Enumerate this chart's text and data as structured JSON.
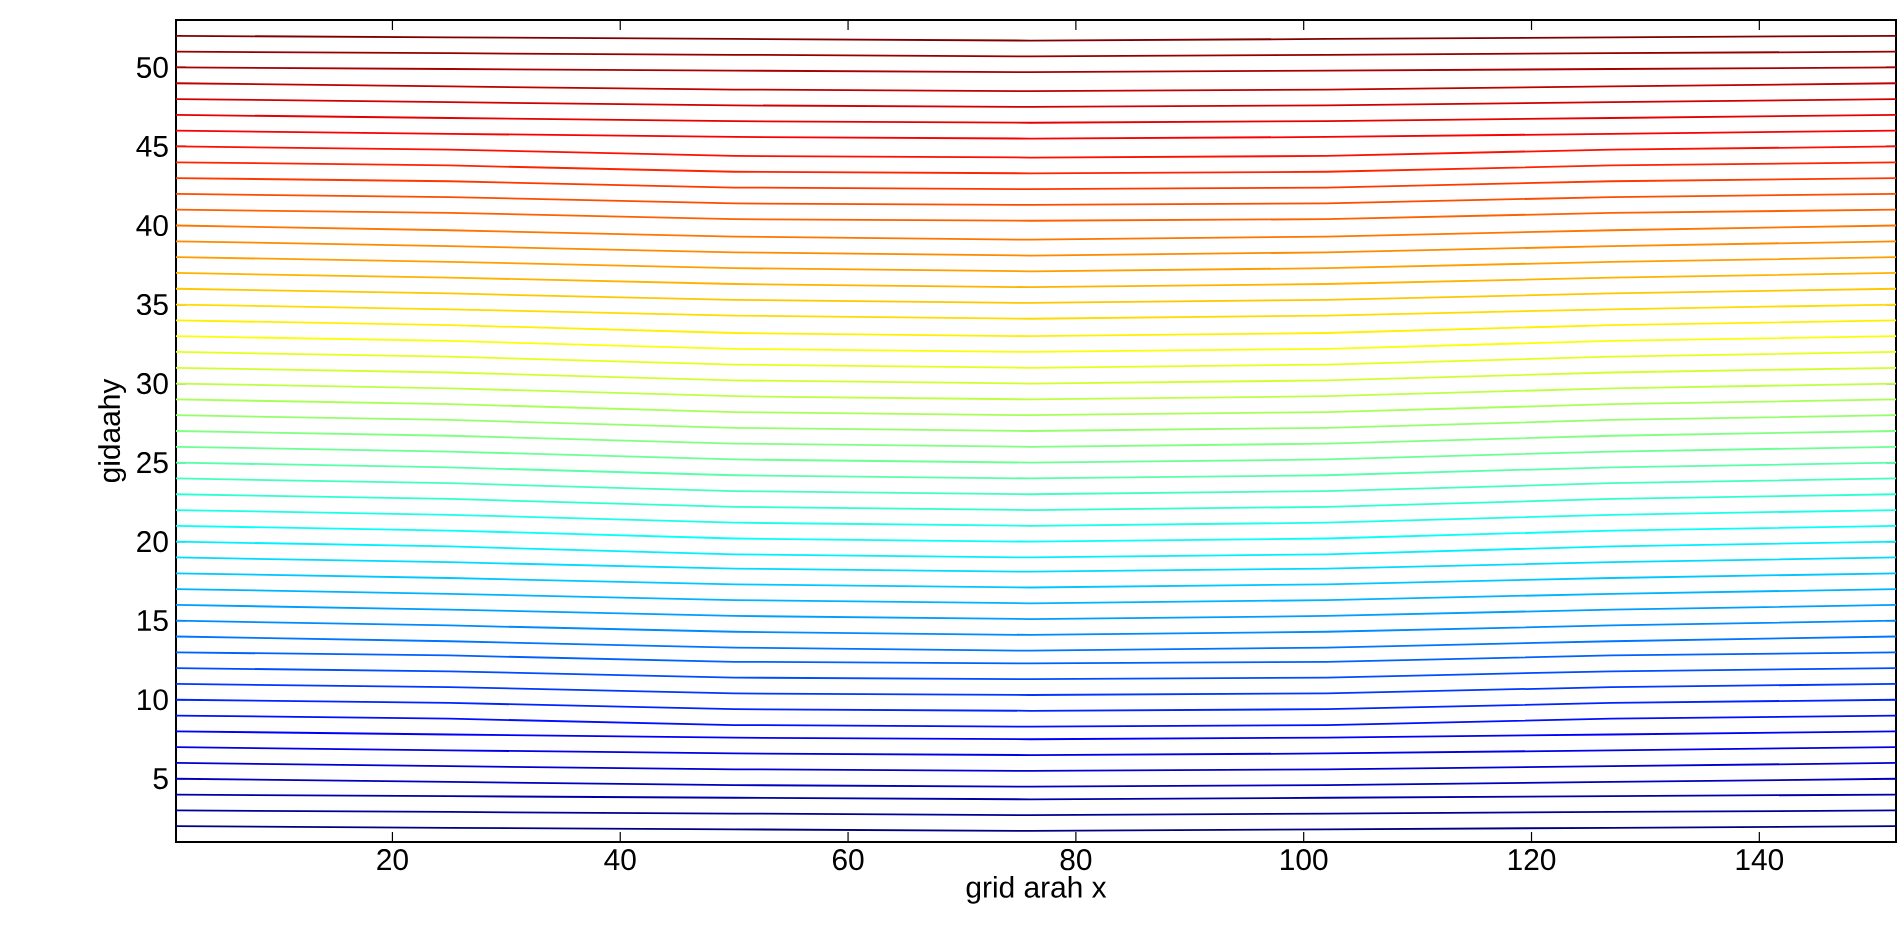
{
  "chart_data": {
    "type": "line",
    "xlabel": "grid arah x",
    "ylabel": "gidaahy",
    "xlim": [
      1,
      152
    ],
    "ylim": [
      1,
      53
    ],
    "xticks": [
      20,
      40,
      60,
      80,
      100,
      120,
      140
    ],
    "yticks": [
      5,
      10,
      15,
      20,
      25,
      30,
      35,
      40,
      45,
      50
    ],
    "x": [
      1,
      25,
      50,
      76,
      102,
      127,
      152
    ],
    "series": [
      {
        "color": "#000080",
        "values": [
          2,
          1.9,
          1.8,
          1.7,
          1.8,
          1.9,
          2
        ]
      },
      {
        "color": "#000094",
        "values": [
          3,
          2.9,
          2.8,
          2.7,
          2.8,
          2.9,
          3
        ]
      },
      {
        "color": "#0000a8",
        "values": [
          4,
          3.9,
          3.8,
          3.7,
          3.8,
          3.9,
          4
        ]
      },
      {
        "color": "#0000bd",
        "values": [
          5,
          4.8,
          4.6,
          4.5,
          4.6,
          4.8,
          5
        ]
      },
      {
        "color": "#0000d1",
        "values": [
          6,
          5.8,
          5.6,
          5.5,
          5.6,
          5.8,
          6
        ]
      },
      {
        "color": "#0000e6",
        "values": [
          7,
          6.8,
          6.6,
          6.5,
          6.6,
          6.8,
          7
        ]
      },
      {
        "color": "#0000fa",
        "values": [
          8,
          7.8,
          7.6,
          7.5,
          7.6,
          7.8,
          8
        ]
      },
      {
        "color": "#000fff",
        "values": [
          9,
          8.8,
          8.4,
          8.3,
          8.4,
          8.8,
          9
        ]
      },
      {
        "color": "#0024ff",
        "values": [
          10,
          9.8,
          9.4,
          9.3,
          9.4,
          9.8,
          10
        ]
      },
      {
        "color": "#0038ff",
        "values": [
          11,
          10.8,
          10.4,
          10.3,
          10.4,
          10.8,
          11
        ]
      },
      {
        "color": "#004cff",
        "values": [
          12,
          11.8,
          11.4,
          11.3,
          11.4,
          11.8,
          12
        ]
      },
      {
        "color": "#0061ff",
        "values": [
          13,
          12.8,
          12.4,
          12.3,
          12.4,
          12.8,
          13
        ]
      },
      {
        "color": "#0075ff",
        "values": [
          14,
          13.7,
          13.3,
          13.1,
          13.3,
          13.7,
          14
        ]
      },
      {
        "color": "#008aff",
        "values": [
          15,
          14.7,
          14.3,
          14.1,
          14.3,
          14.7,
          15
        ]
      },
      {
        "color": "#009eff",
        "values": [
          16,
          15.7,
          15.3,
          15.1,
          15.3,
          15.7,
          16
        ]
      },
      {
        "color": "#00b3ff",
        "values": [
          17,
          16.7,
          16.3,
          16.1,
          16.3,
          16.7,
          17
        ]
      },
      {
        "color": "#00c7ff",
        "values": [
          18,
          17.7,
          17.3,
          17.1,
          17.3,
          17.7,
          18
        ]
      },
      {
        "color": "#00dbff",
        "values": [
          19,
          18.7,
          18.3,
          18.1,
          18.3,
          18.7,
          19
        ]
      },
      {
        "color": "#00f0ff",
        "values": [
          20,
          19.7,
          19.2,
          19,
          19.2,
          19.7,
          20
        ]
      },
      {
        "color": "#05fffa",
        "values": [
          21,
          20.7,
          20.2,
          20,
          20.2,
          20.7,
          21
        ]
      },
      {
        "color": "#1affe6",
        "values": [
          22,
          21.7,
          21.2,
          21,
          21.2,
          21.7,
          22
        ]
      },
      {
        "color": "#2effd1",
        "values": [
          23,
          22.7,
          22.2,
          22,
          22.2,
          22.7,
          23
        ]
      },
      {
        "color": "#42ffbd",
        "values": [
          24,
          23.7,
          23.2,
          23,
          23.2,
          23.7,
          24
        ]
      },
      {
        "color": "#57ffa8",
        "values": [
          25,
          24.7,
          24.2,
          24,
          24.2,
          24.7,
          25
        ]
      },
      {
        "color": "#6bff94",
        "values": [
          26,
          25.7,
          25.2,
          25,
          25.2,
          25.7,
          26
        ]
      },
      {
        "color": "#80ff80",
        "values": [
          27,
          26.7,
          26.2,
          26,
          26.2,
          26.7,
          27
        ]
      },
      {
        "color": "#94ff6b",
        "values": [
          28,
          27.7,
          27.2,
          27,
          27.2,
          27.7,
          28
        ]
      },
      {
        "color": "#a8ff57",
        "values": [
          29,
          28.7,
          28.2,
          28,
          28.2,
          28.7,
          29
        ]
      },
      {
        "color": "#bdff42",
        "values": [
          30,
          29.7,
          29.2,
          29,
          29.2,
          29.7,
          30
        ]
      },
      {
        "color": "#d1ff2e",
        "values": [
          31,
          30.7,
          30.2,
          30,
          30.2,
          30.7,
          31
        ]
      },
      {
        "color": "#e6ff1a",
        "values": [
          32,
          31.7,
          31.2,
          31,
          31.2,
          31.7,
          32
        ]
      },
      {
        "color": "#faff05",
        "values": [
          33,
          32.7,
          32.2,
          32,
          32.2,
          32.7,
          33
        ]
      },
      {
        "color": "#fff000",
        "values": [
          34,
          33.7,
          33.2,
          33,
          33.2,
          33.7,
          34
        ]
      },
      {
        "color": "#ffdb00",
        "values": [
          35,
          34.7,
          34.3,
          34.1,
          34.3,
          34.7,
          35
        ]
      },
      {
        "color": "#ffc700",
        "values": [
          36,
          35.7,
          35.3,
          35.1,
          35.3,
          35.7,
          36
        ]
      },
      {
        "color": "#ffb300",
        "values": [
          37,
          36.7,
          36.3,
          36.1,
          36.3,
          36.7,
          37
        ]
      },
      {
        "color": "#ff9e00",
        "values": [
          38,
          37.7,
          37.3,
          37.1,
          37.3,
          37.7,
          38
        ]
      },
      {
        "color": "#ff8a00",
        "values": [
          39,
          38.7,
          38.3,
          38.1,
          38.3,
          38.7,
          39
        ]
      },
      {
        "color": "#ff7500",
        "values": [
          40,
          39.7,
          39.3,
          39.1,
          39.3,
          39.7,
          40
        ]
      },
      {
        "color": "#ff6100",
        "values": [
          41,
          40.8,
          40.4,
          40.3,
          40.4,
          40.8,
          41
        ]
      },
      {
        "color": "#ff4c00",
        "values": [
          42,
          41.8,
          41.4,
          41.3,
          41.4,
          41.8,
          42
        ]
      },
      {
        "color": "#ff3800",
        "values": [
          43,
          42.8,
          42.4,
          42.3,
          42.4,
          42.8,
          43
        ]
      },
      {
        "color": "#ff2400",
        "values": [
          44,
          43.8,
          43.4,
          43.3,
          43.4,
          43.8,
          44
        ]
      },
      {
        "color": "#ff0f00",
        "values": [
          45,
          44.8,
          44.4,
          44.3,
          44.4,
          44.8,
          45
        ]
      },
      {
        "color": "#fa0000",
        "values": [
          46,
          45.8,
          45.6,
          45.5,
          45.6,
          45.8,
          46
        ]
      },
      {
        "color": "#e60000",
        "values": [
          47,
          46.8,
          46.6,
          46.5,
          46.6,
          46.8,
          47
        ]
      },
      {
        "color": "#d10000",
        "values": [
          48,
          47.8,
          47.6,
          47.5,
          47.6,
          47.8,
          48
        ]
      },
      {
        "color": "#bd0000",
        "values": [
          49,
          48.8,
          48.6,
          48.5,
          48.6,
          48.8,
          49
        ]
      },
      {
        "color": "#a80000",
        "values": [
          50,
          49.9,
          49.8,
          49.7,
          49.8,
          49.9,
          50
        ]
      },
      {
        "color": "#940000",
        "values": [
          51,
          50.9,
          50.8,
          50.7,
          50.8,
          50.9,
          51
        ]
      },
      {
        "color": "#800000",
        "values": [
          52,
          51.9,
          51.8,
          51.7,
          51.8,
          51.9,
          52
        ]
      }
    ]
  }
}
